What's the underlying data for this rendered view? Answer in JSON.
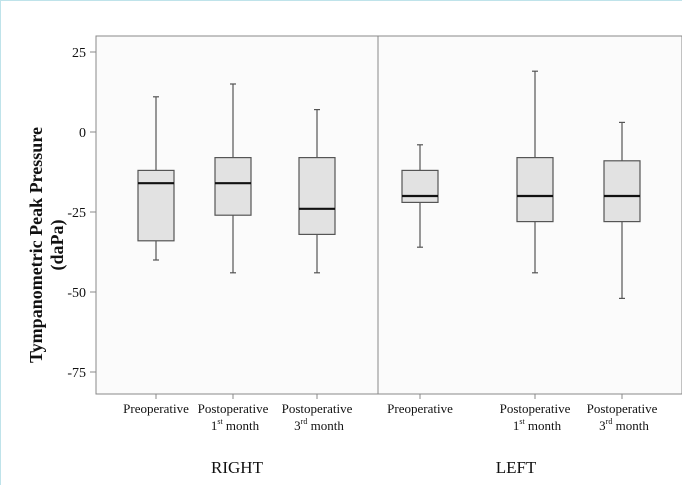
{
  "chart_data": {
    "type": "box",
    "ylabel_line1": "Tympanometric Peak Pressure",
    "ylabel_line2": "(daPa)",
    "yticks": [
      25,
      0,
      -25,
      -50,
      -75
    ],
    "ytick_labels": [
      "25",
      "0",
      "-25",
      "-50",
      "-75"
    ],
    "ylim": [
      -80,
      30
    ],
    "grid": false,
    "panels": [
      {
        "name": "RIGHT",
        "categories": [
          {
            "line1": "Preoperative",
            "line2": "",
            "sup": "",
            "line2_rest": ""
          },
          {
            "line1": "Postoperative",
            "line2": "1",
            "sup": "st",
            "line2_rest": " month"
          },
          {
            "line1": "Postoperative",
            "line2": "3",
            "sup": "rd",
            "line2_rest": " month"
          }
        ],
        "boxes": [
          {
            "min": -40,
            "q1": -34,
            "median": -16,
            "q3": -12,
            "max": 11
          },
          {
            "min": -44,
            "q1": -26,
            "median": -16,
            "q3": -8,
            "max": 15
          },
          {
            "min": -44,
            "q1": -32,
            "median": -24,
            "q3": -8,
            "max": 7
          }
        ]
      },
      {
        "name": "LEFT",
        "categories": [
          {
            "line1": "Preoperative",
            "line2": "",
            "sup": "",
            "line2_rest": ""
          },
          {
            "line1": "Postoperative",
            "line2": "1",
            "sup": "st",
            "line2_rest": " month"
          },
          {
            "line1": "Postoperative",
            "line2": "3",
            "sup": "rd",
            "line2_rest": " month"
          }
        ],
        "boxes": [
          {
            "min": -36,
            "q1": -22,
            "median": -20,
            "q3": -12,
            "max": -4
          },
          {
            "min": -44,
            "q1": -28,
            "median": -20,
            "q3": -8,
            "max": 19
          },
          {
            "min": -52,
            "q1": -28,
            "median": -20,
            "q3": -9,
            "max": 3
          }
        ]
      }
    ],
    "colors": {
      "box_fill": "#e2e2e2",
      "box_stroke": "#555555",
      "median": "#111111",
      "frame": "#888888",
      "panel_bg": "#fbfbfb"
    }
  }
}
